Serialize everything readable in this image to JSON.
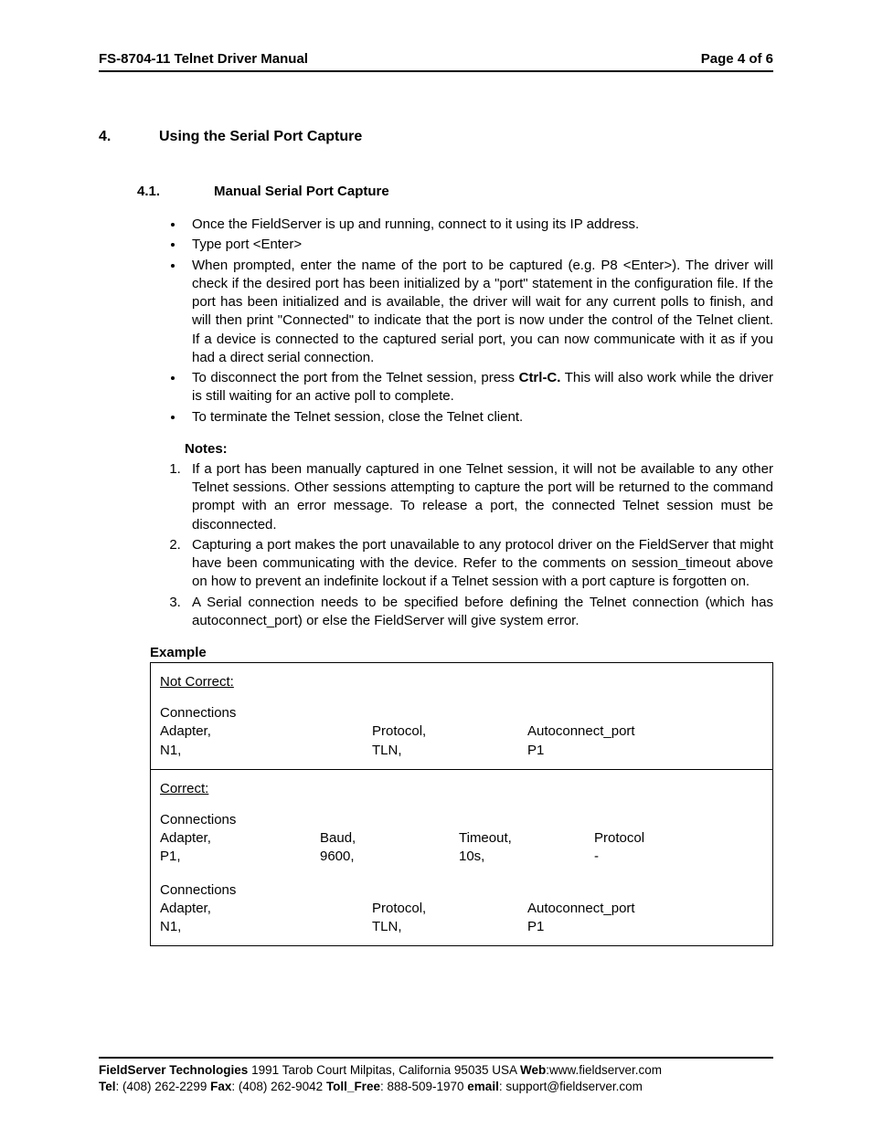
{
  "header": {
    "left": "FS-8704-11 Telnet Driver Manual",
    "right": "Page 4 of 6"
  },
  "section": {
    "num": "4.",
    "title": "Using the Serial Port Capture"
  },
  "subsection": {
    "num": "4.1.",
    "title": "Manual Serial Port Capture"
  },
  "bullets": [
    "Once the FieldServer is up and running, connect to it using its IP address.",
    "Type port <Enter>",
    "When prompted, enter the name of the port to be captured (e.g. P8 <Enter>). The driver will check if the desired port has been initialized by a \"port\" statement in the configuration file. If the port has been initialized and is available, the driver will wait for any current polls to finish, and will then print \"Connected\" to indicate that the port is now under the control of the Telnet client. If a device is connected to the captured serial port, you can now communicate with it as if you had a direct serial connection.",
    "__BULLET4__",
    "To terminate the Telnet session, close the Telnet client."
  ],
  "bullet4_pre": "To disconnect the port from the Telnet session, press ",
  "bullet4_bold": "Ctrl-C.",
  "bullet4_post": " This will also work while the driver is still waiting for an active poll to complete.",
  "notes_label": "Notes:",
  "notes": [
    "If a port has been manually captured in one Telnet session, it will not be available to any other Telnet sessions. Other sessions attempting to capture the port will be returned to the command prompt with an error message. To release a port, the connected Telnet session must be disconnected.",
    "Capturing a port makes the port unavailable to any protocol driver on the FieldServer that might have been communicating with the device. Refer to the comments on session_timeout above on how to prevent an indefinite lockout if a Telnet session with a port capture is forgotten on.",
    "A Serial connection needs to be specified before defining the Telnet connection (which has autoconnect_port) or else the FieldServer will give system error."
  ],
  "example_label": "Example",
  "example": {
    "not_correct_label": "Not Correct:",
    "correct_label": "Correct:",
    "blockA": {
      "r1": {
        "c1": "Connections"
      },
      "r2": {
        "c1": "Adapter,",
        "c2": "Protocol,",
        "c3": "Autoconnect_port"
      },
      "r3": {
        "c1": "N1,",
        "c2": "TLN,",
        "c3": "P1"
      }
    },
    "blockB": {
      "r1": {
        "c1": "Connections"
      },
      "r2": {
        "c1": "Adapter,",
        "c2": "Baud,",
        "c3": "Timeout,",
        "c4": "Protocol"
      },
      "r3": {
        "c1": "P1,",
        "c2": "9600,",
        "c3": "10s,",
        "c4": "-"
      }
    },
    "blockC": {
      "r1": {
        "c1": "Connections"
      },
      "r2": {
        "c1": "Adapter,",
        "c2": "Protocol,",
        "c3": "Autoconnect_port"
      },
      "r3": {
        "c1": "N1,",
        "c2": "TLN,",
        "c3": "P1"
      }
    }
  },
  "footer": {
    "line1_bold": "FieldServer Technologies",
    "line1_rest": " 1991 Tarob Court Milpitas, California 95035 USA ",
    "web_label": "Web",
    "web_val": ":www.fieldserver.com",
    "tel_label": "Tel",
    "tel_val": ": (408) 262-2299  ",
    "fax_label": "Fax",
    "fax_val": ": (408) 262-9042  ",
    "toll_label": "Toll_Free",
    "toll_val": ": 888-509-1970   ",
    "email_label": "email",
    "email_val": ": support@fieldserver.com"
  }
}
